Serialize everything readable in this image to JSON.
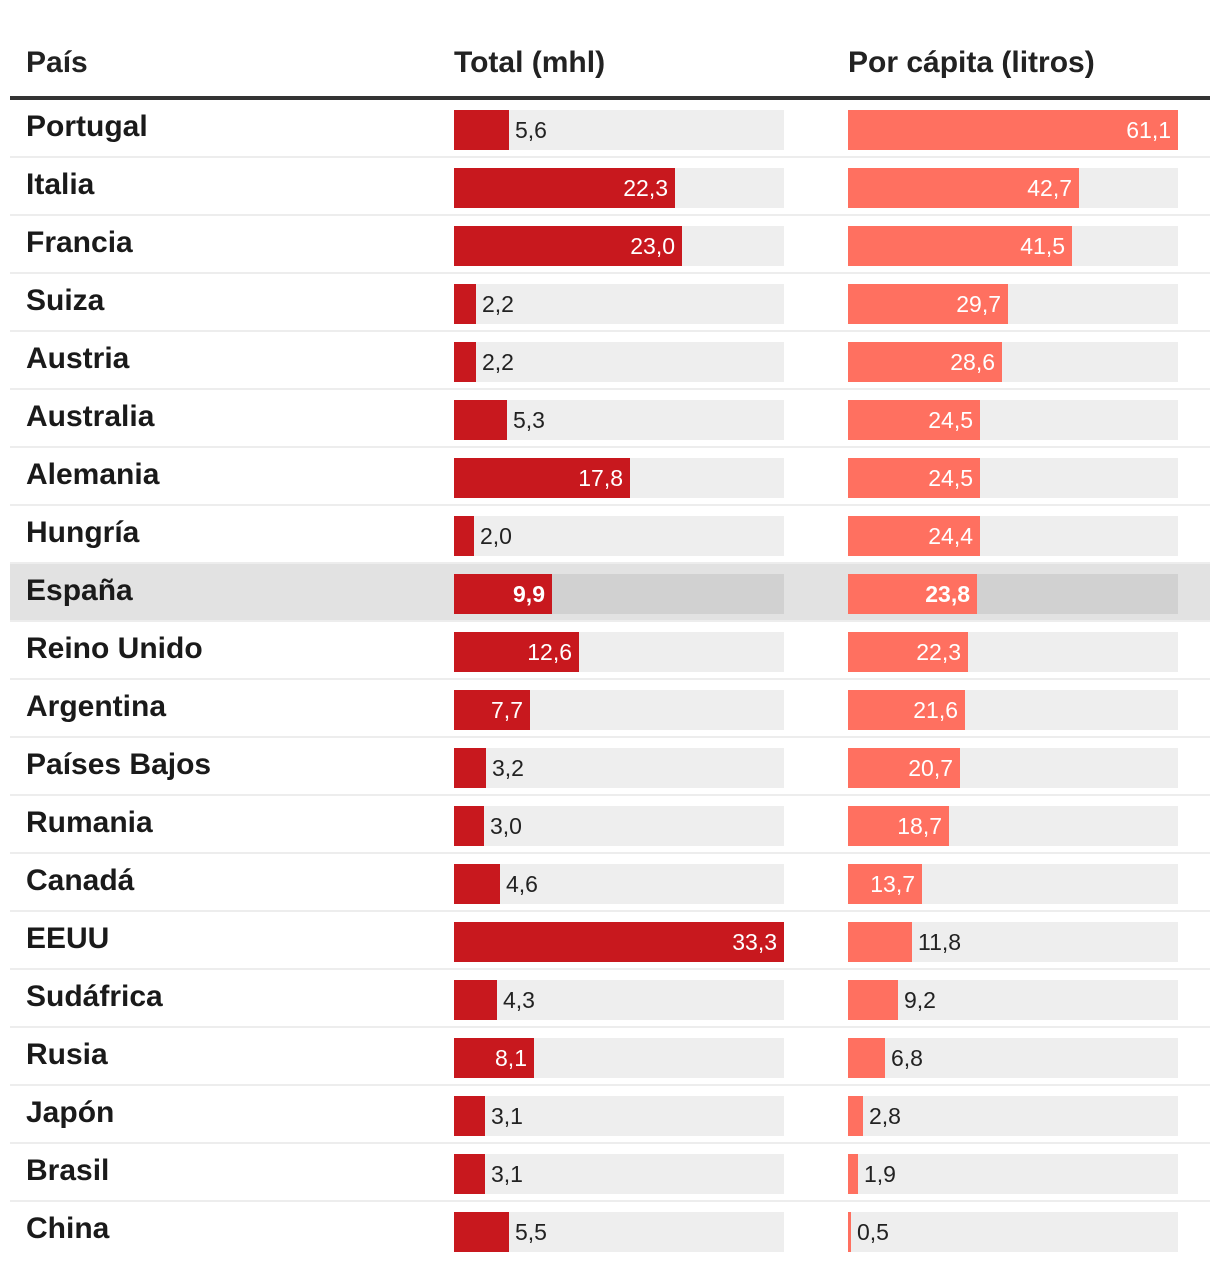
{
  "headers": {
    "country": "País",
    "total": "Total (mhl)",
    "capita": "Por cápita (litros)"
  },
  "colors": {
    "total_bar": "#c8181e",
    "capita_bar": "#ff7060",
    "track": "#eeeeee",
    "highlight_row": "#e2e2e2"
  },
  "chart_data": {
    "type": "bar",
    "orientation": "horizontal",
    "highlight": "España",
    "categories": [
      "Portugal",
      "Italia",
      "Francia",
      "Suiza",
      "Austria",
      "Australia",
      "Alemania",
      "Hungría",
      "España",
      "Reino Unido",
      "Argentina",
      "Países Bajos",
      "Rumania",
      "Canadá",
      "EEUU",
      "Sudáfrica",
      "Rusia",
      "Japón",
      "Brasil",
      "China"
    ],
    "series": [
      {
        "name": "Total (mhl)",
        "xlim": [
          0,
          33.3
        ],
        "values": [
          5.6,
          22.3,
          23.0,
          2.2,
          2.2,
          5.3,
          17.8,
          2.0,
          9.9,
          12.6,
          7.7,
          3.2,
          3.0,
          4.6,
          33.3,
          4.3,
          8.1,
          3.1,
          3.1,
          5.5
        ],
        "labels": [
          "5,6",
          "22,3",
          "23,0",
          "2,2",
          "2,2",
          "5,3",
          "17,8",
          "2,0",
          "9,9",
          "12,6",
          "7,7",
          "3,2",
          "3,0",
          "4,6",
          "33,3",
          "4,3",
          "8,1",
          "3,1",
          "3,1",
          "5,5"
        ]
      },
      {
        "name": "Por cápita (litros)",
        "xlim": [
          0,
          61.1
        ],
        "values": [
          61.1,
          42.7,
          41.5,
          29.7,
          28.6,
          24.5,
          24.5,
          24.4,
          23.8,
          22.3,
          21.6,
          20.7,
          18.7,
          13.7,
          11.8,
          9.2,
          6.8,
          2.8,
          1.9,
          0.5
        ],
        "labels": [
          "61,1",
          "42,7",
          "41,5",
          "29,7",
          "28,6",
          "24,5",
          "24,5",
          "24,4",
          "23,8",
          "22,3",
          "21,6",
          "20,7",
          "18,7",
          "13,7",
          "11,8",
          "9,2",
          "6,8",
          "2,8",
          "1,9",
          "0,5"
        ]
      }
    ]
  }
}
